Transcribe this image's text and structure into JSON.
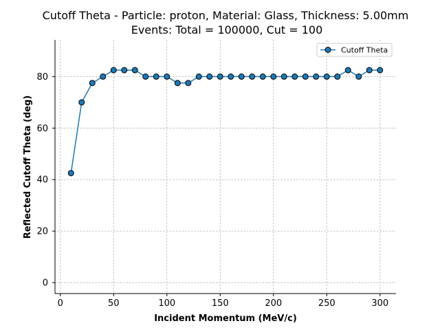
{
  "chart_data": {
    "type": "line",
    "title": "Cutoff Theta - Particle: proton, Material: Glass, Thickness: 5.00mm",
    "subtitle": "Events: Total = 100000, Cut = 100",
    "xlabel": "Incident Momentum (MeV/c)",
    "ylabel": "Reflected Cutoff Theta (deg)",
    "xlim": [
      -5,
      315
    ],
    "ylim": [
      -4.25,
      94.25
    ],
    "xticks": [
      0,
      50,
      100,
      150,
      200,
      250,
      300
    ],
    "yticks": [
      0,
      20,
      40,
      60,
      80
    ],
    "grid": true,
    "legend_position": "top-right",
    "series": [
      {
        "name": "Cutoff Theta",
        "color": "#1f77b4",
        "marker": "circle",
        "x": [
          10,
          20,
          30,
          40,
          50,
          60,
          70,
          80,
          90,
          100,
          110,
          120,
          130,
          140,
          150,
          160,
          170,
          180,
          190,
          200,
          210,
          220,
          230,
          240,
          250,
          260,
          270,
          280,
          290,
          300
        ],
        "y": [
          42.5,
          70,
          77.5,
          80,
          82.5,
          82.5,
          82.5,
          80,
          80,
          80,
          77.5,
          77.5,
          80,
          80,
          80,
          80,
          80,
          80,
          80,
          80,
          80,
          80,
          80,
          80,
          80,
          80,
          82.5,
          80,
          82.5,
          82.5
        ]
      }
    ]
  }
}
